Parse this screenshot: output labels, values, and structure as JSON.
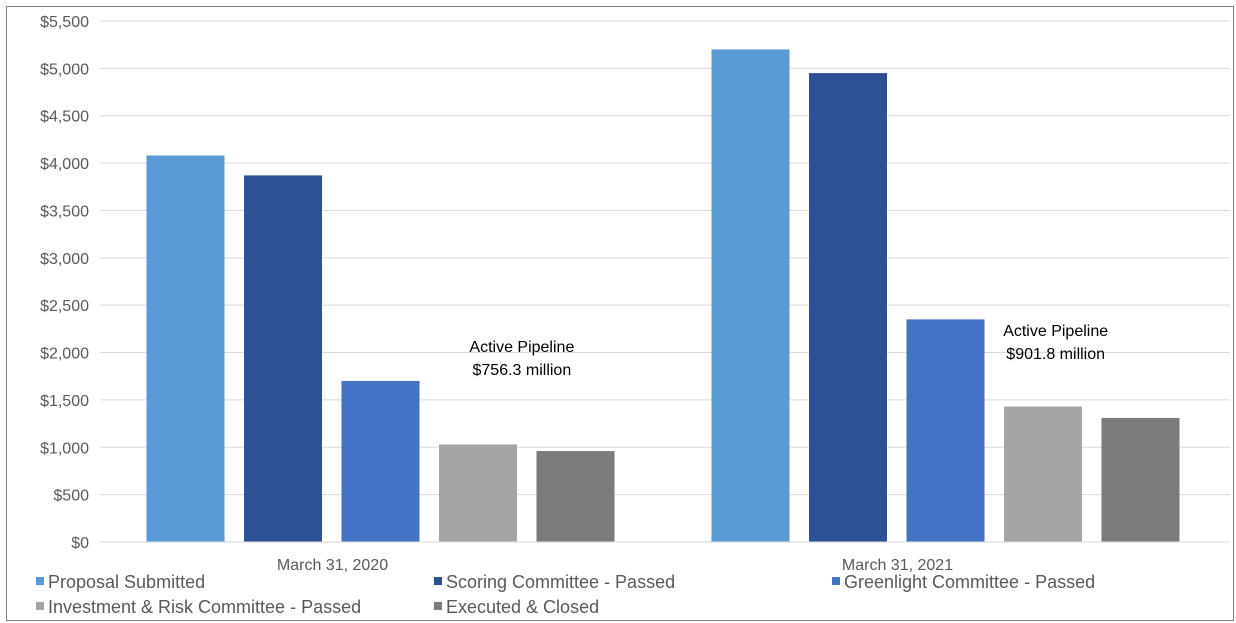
{
  "chart_data": {
    "type": "bar",
    "title": "",
    "xlabel": "",
    "ylabel": "",
    "categories": [
      "March 31, 2020",
      "March 31, 2021"
    ],
    "series": [
      {
        "name": "Proposal Submitted",
        "color": "#5b9bd5",
        "values": [
          4080,
          5200
        ]
      },
      {
        "name": "Scoring Committee - Passed",
        "color": "#2e5096",
        "values": [
          3870,
          4950
        ]
      },
      {
        "name": "Greenlight Committee - Passed",
        "color": "#4472c4",
        "values": [
          1700,
          2350
        ]
      },
      {
        "name": "Investment & Risk Committee - Passed",
        "color": "#a5a5a5",
        "values": [
          1030,
          1430
        ]
      },
      {
        "name": "Executed & Closed",
        "color": "#7b7b7b",
        "values": [
          960,
          1310
        ]
      }
    ],
    "ylim": [
      0,
      5500
    ],
    "yticks": [
      0,
      500,
      1000,
      1500,
      2000,
      2500,
      3000,
      3500,
      4000,
      4500,
      5000,
      5500
    ],
    "ytick_labels": [
      "$0",
      "$500",
      "$1,000",
      "$1,500",
      "$2,000",
      "$2,500",
      "$3,000",
      "$3,500",
      "$4,000",
      "$4,500",
      "$5,000",
      "$5,500"
    ],
    "grid": true,
    "legend_position": "bottom",
    "annotations": [
      {
        "category_index": 0,
        "lines": [
          "Active Pipeline",
          "$756.3 million"
        ]
      },
      {
        "category_index": 1,
        "lines": [
          "Active Pipeline",
          "$901.8 million"
        ]
      }
    ]
  }
}
